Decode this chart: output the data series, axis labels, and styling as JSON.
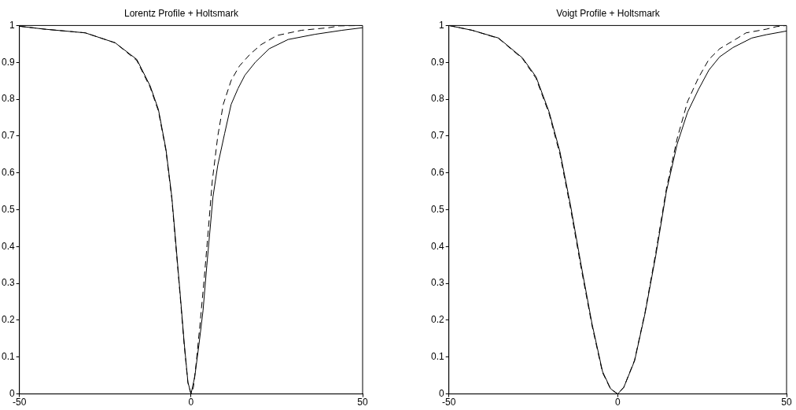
{
  "chart_data": [
    {
      "type": "line",
      "title": "Lorentz Profile + Holtsmark",
      "xlim": [
        -50,
        50
      ],
      "ylim": [
        0,
        1
      ],
      "xticks": [
        -50,
        0,
        50
      ],
      "yticks": [
        0,
        0.1,
        0.2,
        0.3,
        0.4,
        0.5,
        0.6,
        0.7,
        0.8,
        0.9,
        1
      ],
      "grid": false,
      "legend": false,
      "series": [
        {
          "color": "#000000",
          "line_style": "solid",
          "x": [
            -50,
            -42.6,
            -30.8,
            -22.1,
            -15.8,
            -11.9,
            -9.5,
            -7.3,
            -5.6,
            -4.4,
            -3.2,
            -2.0,
            -0.9,
            0,
            1.1,
            2.3,
            3.5,
            4.6,
            6.4,
            7.8,
            9.8,
            11.7,
            13.7,
            15.7,
            18.8,
            22.8,
            28.3,
            36.1,
            44,
            50
          ],
          "values": [
            0.998,
            0.99,
            0.98,
            0.953,
            0.908,
            0.836,
            0.772,
            0.664,
            0.535,
            0.406,
            0.276,
            0.14,
            0.032,
            0,
            0.047,
            0.133,
            0.226,
            0.348,
            0.535,
            0.621,
            0.707,
            0.786,
            0.829,
            0.865,
            0.901,
            0.937,
            0.962,
            0.976,
            0.987,
            0.994
          ]
        },
        {
          "color": "#000000",
          "line_style": "dashed",
          "x": [
            -50,
            -42.6,
            -30.8,
            -22.1,
            -15.8,
            -11.9,
            -9.5,
            -7.3,
            -5.6,
            -4.4,
            -3.2,
            -2.0,
            -0.9,
            0,
            0.7,
            1.5,
            2.7,
            3.9,
            5.0,
            6.2,
            7.8,
            9.4,
            11.7,
            14.1,
            17.2,
            20.4,
            25.1,
            32.2,
            40.1,
            43.2,
            50
          ],
          "values": [
            0.998,
            0.99,
            0.98,
            0.953,
            0.905,
            0.832,
            0.768,
            0.66,
            0.53,
            0.4,
            0.27,
            0.135,
            0.03,
            0,
            0.018,
            0.083,
            0.197,
            0.319,
            0.441,
            0.578,
            0.7,
            0.786,
            0.851,
            0.89,
            0.922,
            0.948,
            0.973,
            0.987,
            0.994,
            0.999,
            1
          ]
        }
      ]
    },
    {
      "type": "line",
      "title": "Voigt Profile + Holtsmark",
      "xlim": [
        -50,
        50
      ],
      "ylim": [
        0,
        1
      ],
      "xticks": [
        -50,
        0,
        50
      ],
      "yticks": [
        0,
        0.1,
        0.2,
        0.3,
        0.4,
        0.5,
        0.6,
        0.7,
        0.8,
        0.9,
        1
      ],
      "grid": false,
      "legend": false,
      "series": [
        {
          "color": "#000000",
          "line_style": "solid",
          "x": [
            -50,
            -43.1,
            -35.3,
            -28.2,
            -24.2,
            -20.3,
            -17.1,
            -14,
            -10.8,
            -7.6,
            -4.5,
            -2.1,
            0,
            1.8,
            5.0,
            8.1,
            11.3,
            14.4,
            17.6,
            20.7,
            23.9,
            27.0,
            30.2,
            34.1,
            39.7,
            44,
            50
          ],
          "values": [
            1,
            0.987,
            0.966,
            0.912,
            0.861,
            0.765,
            0.657,
            0.513,
            0.348,
            0.19,
            0.061,
            0.014,
            0,
            0.018,
            0.09,
            0.219,
            0.377,
            0.549,
            0.678,
            0.765,
            0.826,
            0.879,
            0.915,
            0.94,
            0.966,
            0.975,
            0.985
          ]
        },
        {
          "color": "#000000",
          "line_style": "dashed",
          "x": [
            -50,
            -43.1,
            -35.3,
            -28.2,
            -24.2,
            -20.3,
            -17.1,
            -14,
            -10.8,
            -7.6,
            -4.5,
            -2.1,
            0,
            1.8,
            5.0,
            8.1,
            11.3,
            14.4,
            17.6,
            20.7,
            23.9,
            27.0,
            30.2,
            34.1,
            38.0,
            44,
            47,
            50
          ],
          "values": [
            1,
            0.987,
            0.965,
            0.91,
            0.857,
            0.76,
            0.65,
            0.505,
            0.34,
            0.185,
            0.058,
            0.013,
            0,
            0.018,
            0.092,
            0.222,
            0.385,
            0.556,
            0.693,
            0.794,
            0.858,
            0.908,
            0.937,
            0.958,
            0.98,
            0.99,
            0.997,
            1
          ]
        }
      ]
    }
  ]
}
